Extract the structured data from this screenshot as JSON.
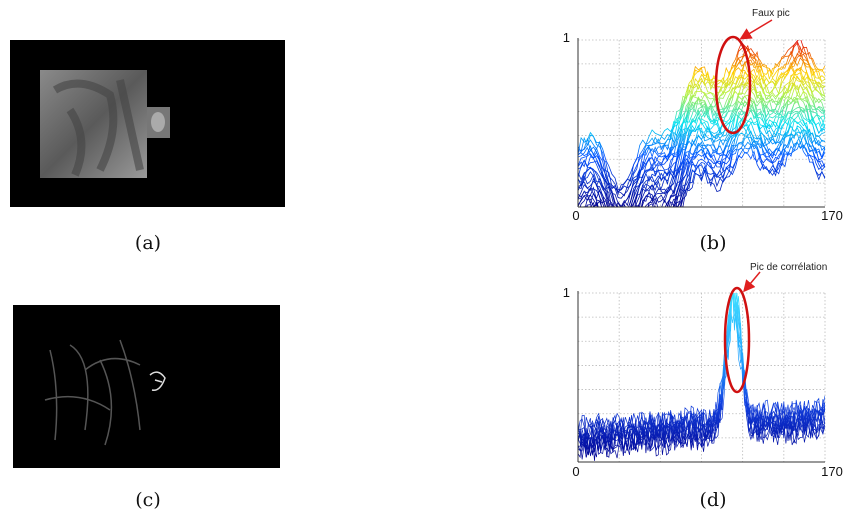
{
  "panels": [
    {
      "caption": "(a)"
    },
    {
      "caption": "(b)",
      "annotation": "Faux pic",
      "y_top_label": "1",
      "x_start_label": "0",
      "x_end_label": "170"
    },
    {
      "caption": "(c)"
    },
    {
      "caption": "(d)",
      "annotation": "Pic de corrélation",
      "y_top_label": "1",
      "x_start_label": "0",
      "x_end_label": "170"
    }
  ]
}
